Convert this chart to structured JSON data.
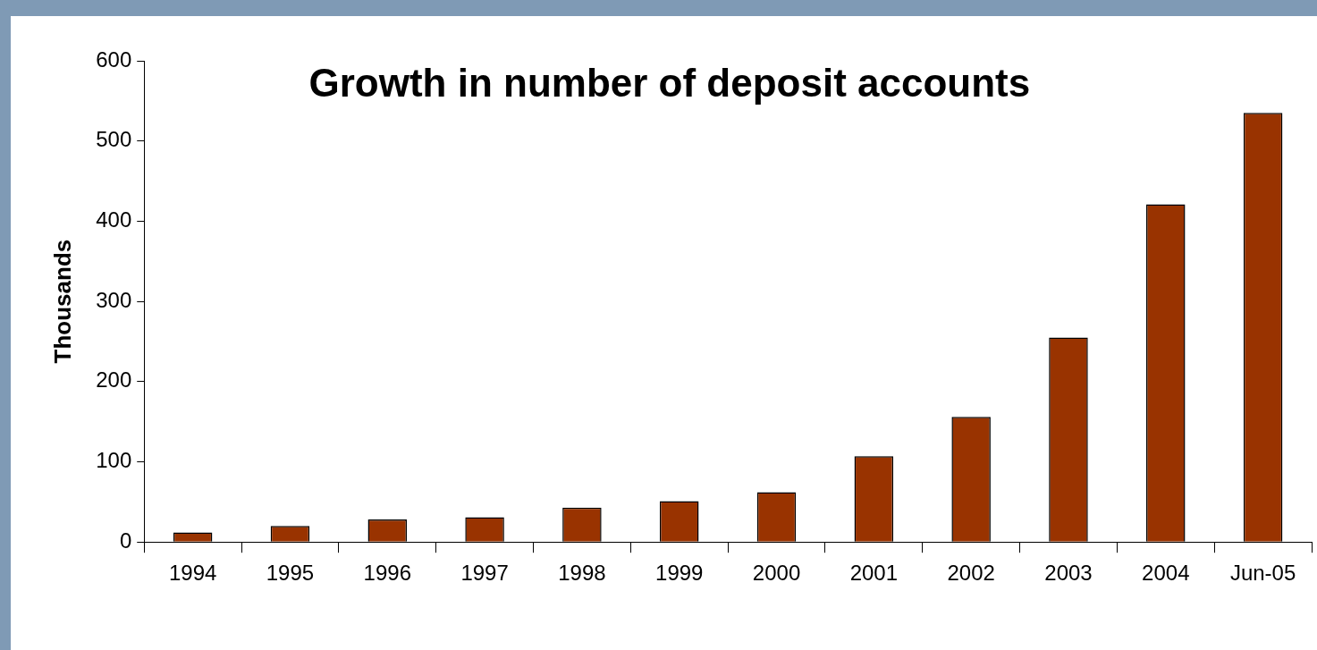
{
  "chart_data": {
    "type": "bar",
    "title": "Growth in number of deposit accounts",
    "ylabel": "Thousands",
    "categories": [
      "1994",
      "1995",
      "1996",
      "1997",
      "1998",
      "1999",
      "2000",
      "2001",
      "2002",
      "2003",
      "2004",
      "Jun-05"
    ],
    "values": [
      12,
      20,
      28,
      31,
      43,
      51,
      62,
      107,
      156,
      255,
      421,
      535
    ],
    "color": "#993300",
    "ylim": [
      0,
      600
    ],
    "yticks": [
      0,
      100,
      200,
      300,
      400,
      500,
      600
    ],
    "grid": false,
    "legend": false
  }
}
